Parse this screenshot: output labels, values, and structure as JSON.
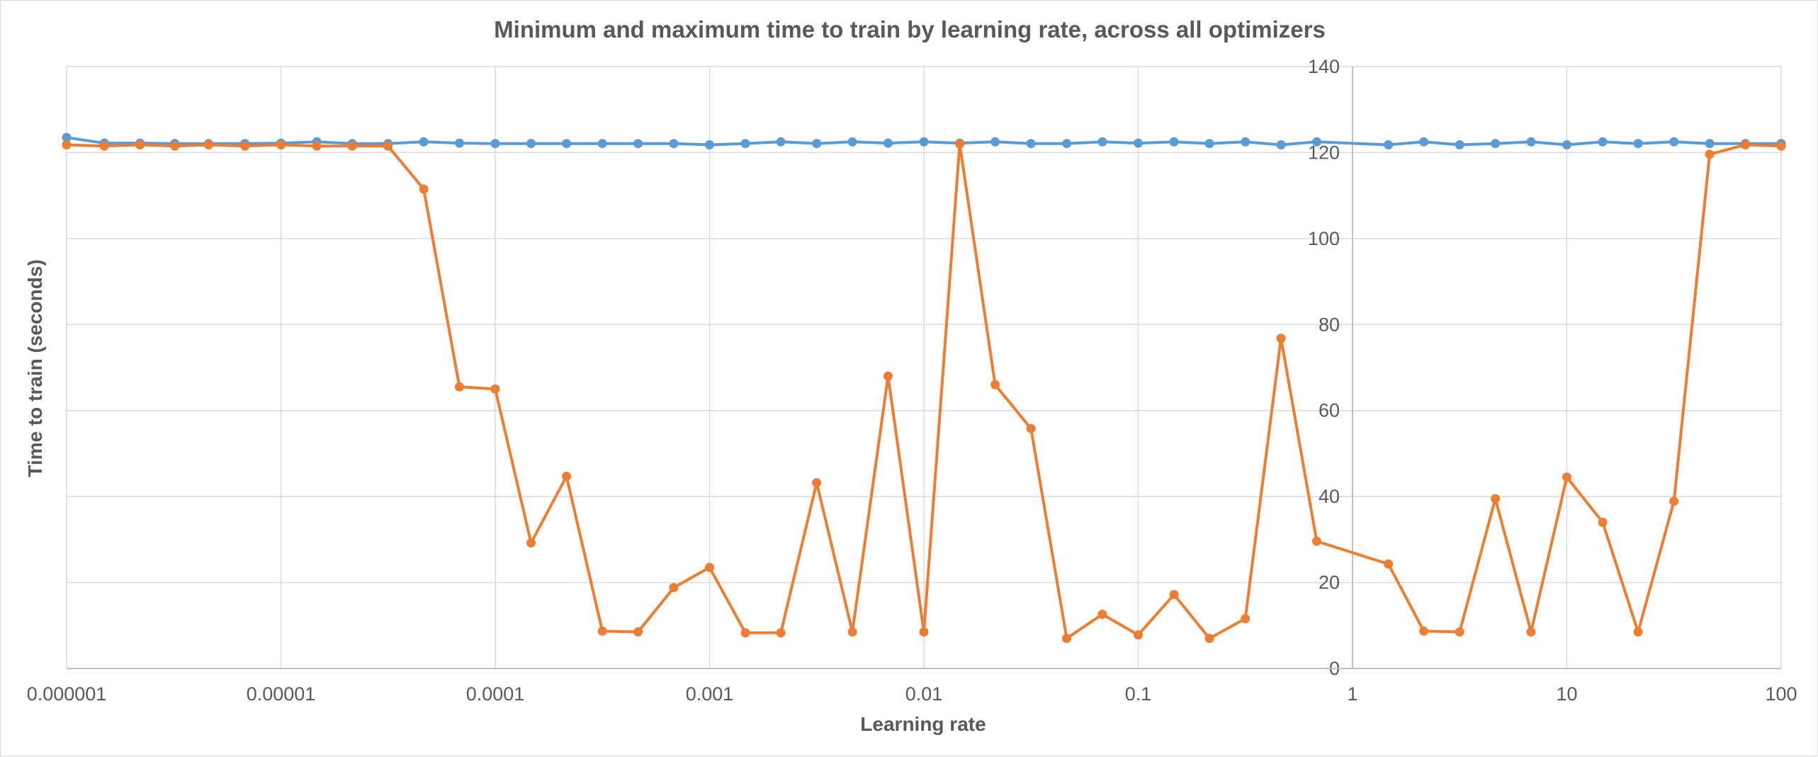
{
  "chart_data": {
    "type": "line",
    "title": "Minimum and maximum time to train by learning rate, across all optimizers",
    "xlabel": "Learning rate",
    "ylabel": "Time to train (seconds)",
    "x_scale": "log",
    "x_range": [
      1e-06,
      100
    ],
    "x_tick_labels": [
      "0.000001",
      "0.00001",
      "0.0001",
      "0.001",
      "0.01",
      "0.1",
      "1",
      "10",
      "100"
    ],
    "x_tick_values": [
      1e-06,
      1e-05,
      0.0001,
      0.001,
      0.01,
      0.1,
      1,
      10,
      100
    ],
    "ylim": [
      0,
      140
    ],
    "y_ticks": [
      0,
      20,
      40,
      60,
      80,
      100,
      120,
      140
    ],
    "y_axis_crosses_x": 1,
    "grid": true,
    "legend": "none",
    "x": [
      1e-06,
      1.5e-06,
      2.2e-06,
      3.2e-06,
      4.6e-06,
      6.8e-06,
      1e-05,
      1.47e-05,
      2.15e-05,
      3.16e-05,
      4.64e-05,
      6.81e-05,
      0.0001,
      0.000147,
      0.000215,
      0.000316,
      0.000464,
      0.000681,
      0.001,
      0.00147,
      0.00215,
      0.00316,
      0.00464,
      0.00681,
      0.01,
      0.0147,
      0.0215,
      0.0316,
      0.0464,
      0.0681,
      0.1,
      0.147,
      0.215,
      0.316,
      0.464,
      0.681,
      1.47,
      2.15,
      3.16,
      4.64,
      6.81,
      10,
      14.7,
      21.5,
      31.6,
      46.4,
      68.1,
      100
    ],
    "series": [
      {
        "color": "#5b9bd5",
        "values": [
          123.5,
          122.2,
          122.2,
          122.1,
          122.1,
          122.1,
          122.2,
          122.5,
          122.1,
          122.1,
          122.5,
          122.2,
          122.1,
          122.1,
          122.1,
          122.1,
          122.1,
          122.1,
          121.8,
          122.1,
          122.5,
          122.1,
          122.5,
          122.2,
          122.5,
          122.2,
          122.5,
          122.1,
          122.1,
          122.5,
          122.2,
          122.5,
          122.1,
          122.5,
          121.8,
          122.5,
          121.8,
          122.5,
          121.8,
          122.1,
          122.5,
          121.8,
          122.5,
          122.1,
          122.5,
          122.1,
          122.1,
          122.1
        ]
      },
      {
        "color": "#ed7d31",
        "values": [
          121.8,
          121.5,
          121.8,
          121.5,
          121.8,
          121.5,
          121.8,
          121.5,
          121.5,
          121.5,
          111.5,
          65.5,
          65.0,
          29.2,
          44.7,
          8.7,
          8.5,
          18.8,
          23.5,
          8.3,
          8.3,
          43.2,
          8.5,
          68.0,
          8.5,
          122.0,
          66.0,
          55.8,
          7.0,
          12.6,
          7.8,
          17.2,
          7.0,
          11.6,
          76.8,
          29.6,
          24.3,
          8.7,
          8.5,
          39.5,
          8.5,
          44.5,
          34.0,
          8.5,
          38.9,
          119.6,
          121.8,
          121.5
        ]
      }
    ]
  }
}
